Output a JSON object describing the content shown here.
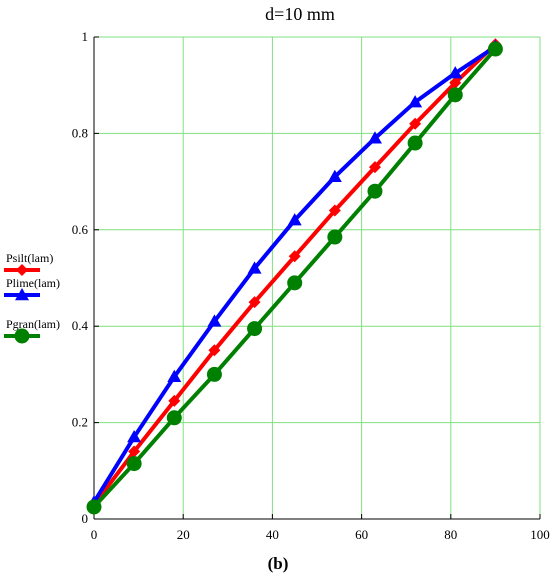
{
  "chart_data": {
    "type": "line",
    "title": "d=10 mm",
    "subtitle": "(b)",
    "xlabel": "",
    "ylabel": "",
    "xlim": [
      0,
      100
    ],
    "ylim": [
      0,
      1
    ],
    "x_ticks": [
      0,
      20,
      40,
      60,
      80,
      100
    ],
    "y_ticks": [
      0,
      0.2,
      0.4,
      0.6,
      0.8,
      1
    ],
    "y_tick_labels": [
      "0",
      "0.2",
      "0.4",
      "0.6",
      "0.8",
      "1"
    ],
    "grid": true,
    "legend_position": "left",
    "x": [
      0,
      9,
      18,
      27,
      36,
      45,
      54,
      63,
      72,
      81,
      90
    ],
    "series": [
      {
        "name": "Psilt(lam)",
        "color": "#ff0000",
        "marker": "diamond",
        "values": [
          0.03,
          0.14,
          0.245,
          0.35,
          0.45,
          0.545,
          0.64,
          0.73,
          0.82,
          0.905,
          0.985
        ]
      },
      {
        "name": "Plime(lam)",
        "color": "#0000ff",
        "marker": "triangle",
        "values": [
          0.035,
          0.17,
          0.295,
          0.41,
          0.52,
          0.62,
          0.71,
          0.79,
          0.865,
          0.925,
          0.98
        ]
      },
      {
        "name": "Pgran(lam)",
        "color": "#008000",
        "marker": "circle",
        "values": [
          0.025,
          0.115,
          0.21,
          0.3,
          0.395,
          0.49,
          0.585,
          0.68,
          0.78,
          0.88,
          0.975
        ]
      }
    ]
  }
}
